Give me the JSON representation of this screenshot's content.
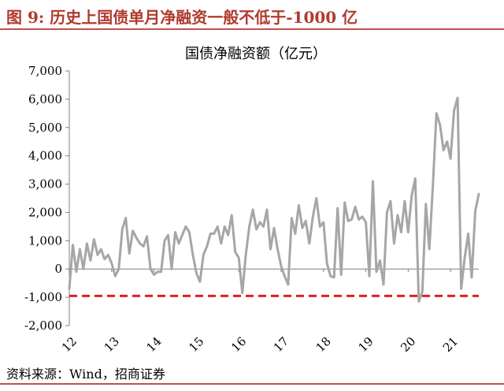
{
  "figure": {
    "title": "图 9:  历史上国债单月净融资一般不低于-1000 亿",
    "source": "资料来源：Wind，招商证券"
  },
  "colors": {
    "header_text": "#b03a2e",
    "rule": "#c0504d",
    "series_line": "#a6a6a6",
    "threshold_line": "#e02020",
    "axis": "#7f7f7f"
  },
  "chart_data": {
    "type": "line",
    "title": "国债净融资额（亿元）",
    "xlabel": "",
    "ylabel": "",
    "ylim": [
      -2000,
      7000
    ],
    "yticks": [
      -2000,
      -1000,
      0,
      1000,
      2000,
      3000,
      4000,
      5000,
      6000,
      7000
    ],
    "ytick_labels": [
      "-2,000",
      "-1,000",
      "0",
      "1,000",
      "2,000",
      "3,000",
      "4,000",
      "5,000",
      "6,000",
      "7,000"
    ],
    "xtick_labels": [
      "12",
      "13",
      "14",
      "15",
      "16",
      "17",
      "18",
      "19",
      "20",
      "21"
    ],
    "grid": false,
    "legend": "none",
    "reference_line": {
      "value": -950,
      "style": "dashed"
    },
    "series": [
      {
        "values": [
          -700,
          850,
          -100,
          700,
          0,
          900,
          300,
          1050,
          500,
          700,
          350,
          500,
          200,
          -250,
          0,
          1400,
          1800,
          550,
          1350,
          1100,
          900,
          800,
          1150,
          0,
          -200,
          -100,
          -100,
          1000,
          1200,
          0,
          1300,
          900,
          1200,
          1500,
          1300,
          500,
          -150,
          -450,
          500,
          800,
          1250,
          1250,
          1500,
          900,
          1500,
          1200,
          1900,
          600,
          400,
          -850,
          500,
          1500,
          2100,
          1400,
          1650,
          1500,
          2100,
          700,
          1450,
          700,
          100,
          -250,
          -550,
          1800,
          1250,
          2250,
          1450,
          1700,
          900,
          1850,
          2500,
          1500,
          1650,
          200,
          -250,
          -300,
          2150,
          -200,
          2350,
          1700,
          1750,
          2200,
          1750,
          1850,
          1650,
          -250,
          3100,
          -100,
          300,
          -550,
          2000,
          2400,
          900,
          1900,
          1300,
          2400,
          1300,
          2600,
          3200,
          -1150,
          -800,
          2300,
          700,
          2950,
          5500,
          5100,
          4200,
          4500,
          3900,
          5600,
          6050,
          -700,
          400,
          1250,
          -300,
          2050,
          2650
        ]
      }
    ]
  }
}
